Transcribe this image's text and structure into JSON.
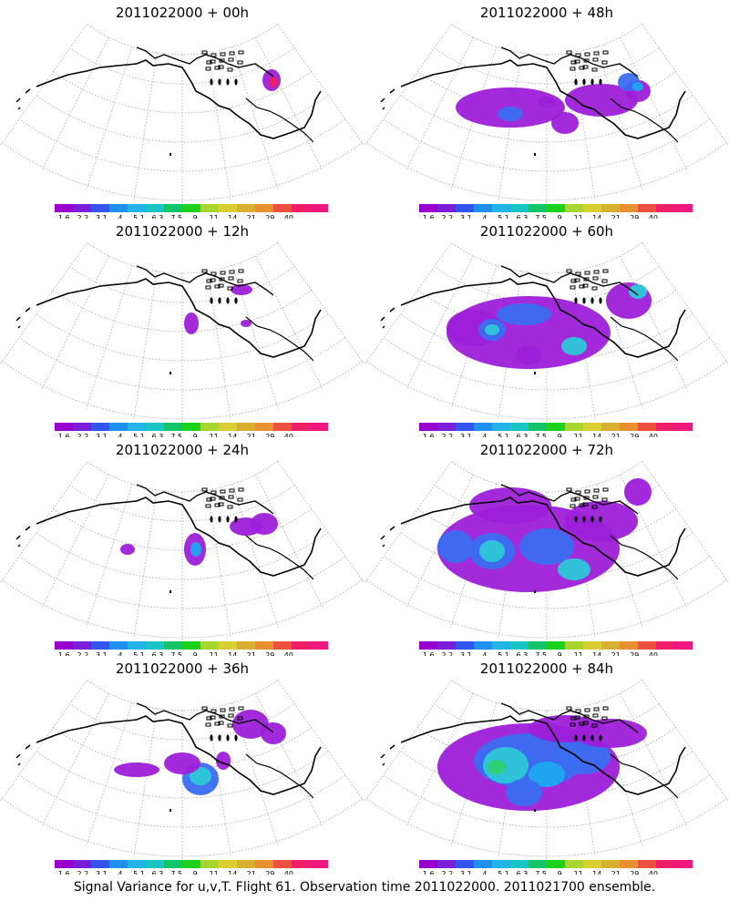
{
  "panels": [
    {
      "title": "2011022000  +  00h"
    },
    {
      "title": "2011022000  +  48h"
    },
    {
      "title": "2011022000  +  12h"
    },
    {
      "title": "2011022000  +  60h"
    },
    {
      "title": "2011022000  +  24h"
    },
    {
      "title": "2011022000  +  72h"
    },
    {
      "title": "2011022000  +  36h"
    },
    {
      "title": "2011022000  +  84h"
    }
  ],
  "colorbar": {
    "labels": [
      "1.6",
      "2.2",
      "3.1",
      "4",
      "5.1",
      "6.3",
      "7.5",
      "9",
      "11",
      "14",
      "21",
      "29",
      "40"
    ],
    "colors": [
      "#9900cc",
      "#7a1fd6",
      "#3355ee",
      "#1f90ee",
      "#22b4e6",
      "#19c4c4",
      "#14c46a",
      "#1cd11c",
      "#a8d630",
      "#d8d030",
      "#d8b030",
      "#e8902e",
      "#ee5040",
      "#ee1f66",
      "#f01880"
    ]
  },
  "caption": "Signal Variance for u,v,T. Flight 61. Observation time 2011022000. 2011021700 ensemble."
}
